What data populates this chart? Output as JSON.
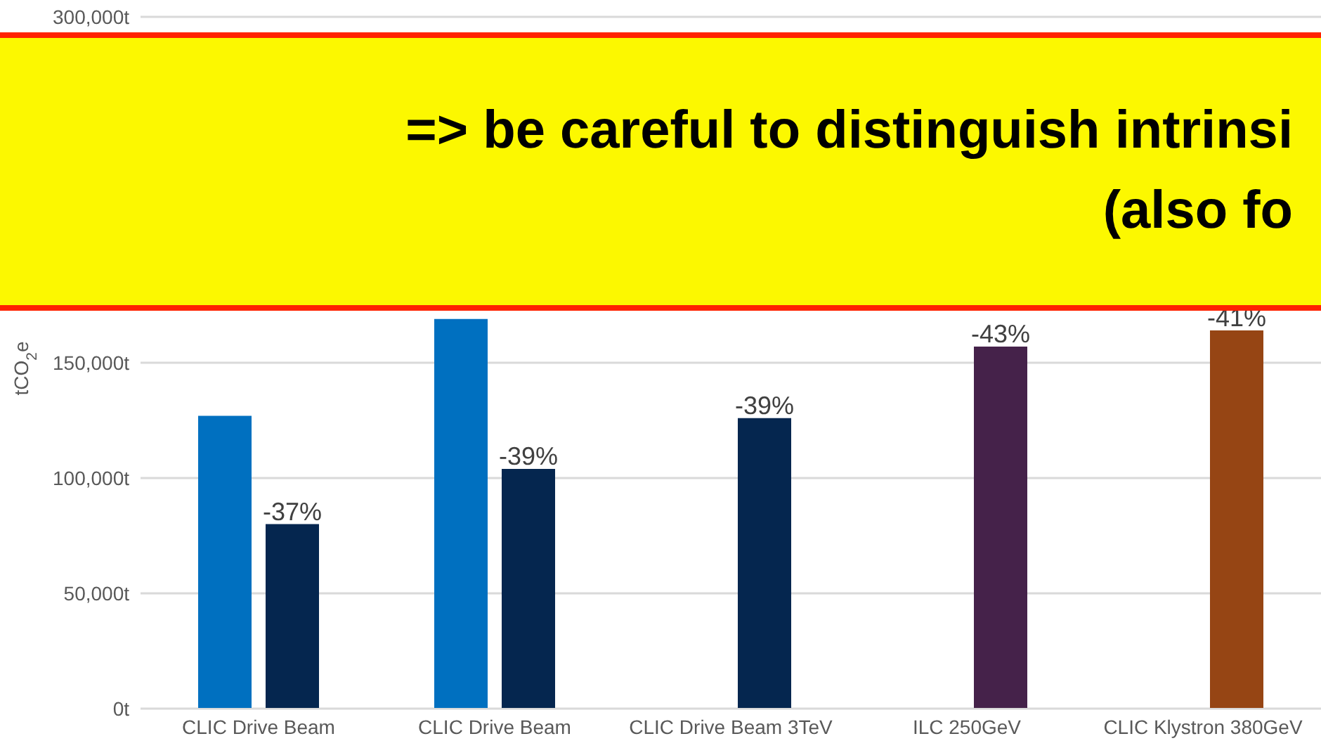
{
  "chart_data": {
    "type": "bar",
    "categories": [
      "CLIC Drive Beam",
      "CLIC Drive Beam",
      "CLIC Drive Beam 3TeV",
      "ILC 250GeV",
      "CLIC Klystron 380GeV"
    ],
    "series": [
      {
        "colors": [
          "#0070c0",
          "#0070c0",
          "#0070c0",
          "#88418a",
          "#e46f24"
        ],
        "values": [
          127000,
          169000,
          null,
          null,
          null
        ]
      },
      {
        "colors": [
          "#05264f",
          "#05264f",
          "#05264f",
          "#45224a",
          "#964514"
        ],
        "values": [
          80000,
          104000,
          126000,
          157000,
          164000
        ]
      }
    ],
    "ylabel": "tCO$_{2}$e",
    "ylim": [
      0,
      300000
    ],
    "yticks": [
      {
        "value": 0,
        "label": "0t"
      },
      {
        "value": 50000,
        "label": "50,000t"
      },
      {
        "value": 100000,
        "label": "100,000t"
      },
      {
        "value": 150000,
        "label": "150,000t"
      },
      {
        "value": 300000,
        "label": "300,000t"
      }
    ],
    "grid": "y",
    "annotations": [
      "=> be careful to distinguish intrinsi",
      "(also fo",
      {
        "text": "-37%",
        "x": "CLIC Drive Beam",
        "y": 80000
      },
      {
        "text": "-39%",
        "y": 104000
      },
      {
        "text": "-39%",
        "x": "CLIC Drive Beam 3TeV",
        "y": 126000
      },
      {
        "text": "-43%",
        "x": "ILC 250GeV",
        "y": 157000
      },
      {
        "text": "-41%",
        "x": "CLIC Klystron 380GeV",
        "y": 164000
      }
    ]
  }
}
